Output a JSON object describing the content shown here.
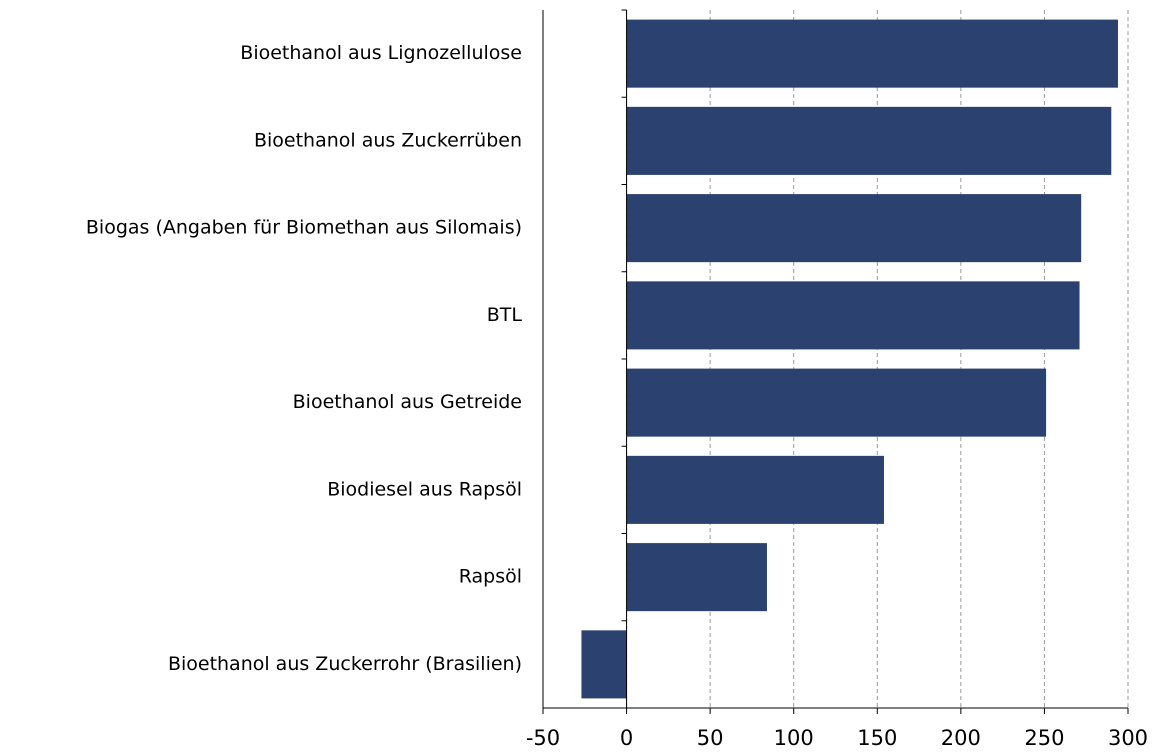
{
  "chart_data": {
    "type": "barh",
    "categories": [
      "Bioethanol aus Lignozellulose",
      "Bioethanol aus Zuckerrüben",
      "Biogas (Angaben für Biomethan aus Silomais)",
      "BTL",
      "Bioethanol aus Getreide",
      "Biodiesel aus Rapsöl",
      "Rapsöl",
      "Bioethanol aus Zuckerrohr (Brasilien)"
    ],
    "values": [
      294,
      290,
      272,
      271,
      251,
      154,
      84,
      -27
    ],
    "color": "#2b4170",
    "xlim": [
      -50,
      300
    ],
    "xticks": [
      -50,
      0,
      50,
      100,
      150,
      200,
      250,
      300
    ],
    "grid": true
  }
}
